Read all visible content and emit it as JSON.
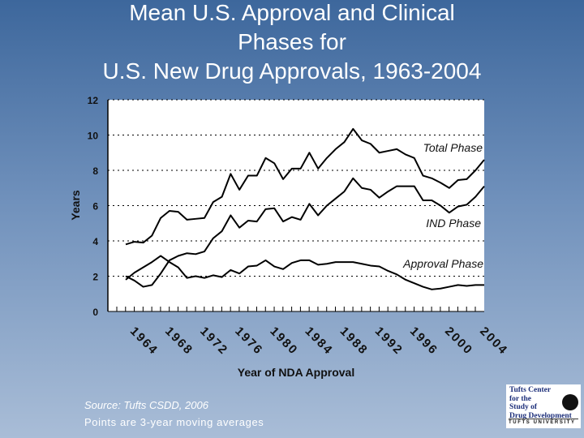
{
  "title_lines": [
    "Mean U.S. Approval and Clinical",
    "Phases for",
    "U.S. New Drug Approvals, 1963-2004"
  ],
  "chart_data": {
    "type": "line",
    "title": "Mean U.S. Approval and Clinical Phases for U.S. New Drug Approvals, 1963-2004",
    "xlabel": "Year of NDA Approval",
    "ylabel": "Years",
    "ylim": [
      0,
      12
    ],
    "yticks": [
      "0",
      "2",
      "4",
      "6",
      "8",
      "10",
      "12"
    ],
    "xlim": [
      1963,
      2004
    ],
    "xticks": [
      "1964",
      "1968",
      "1972",
      "1976",
      "1980",
      "1984",
      "1988",
      "1992",
      "1996",
      "2000",
      "2004"
    ],
    "grid": "horizontal dashed",
    "x": [
      1963,
      1964,
      1965,
      1966,
      1967,
      1968,
      1969,
      1970,
      1971,
      1972,
      1973,
      1974,
      1975,
      1976,
      1977,
      1978,
      1979,
      1980,
      1981,
      1982,
      1983,
      1984,
      1985,
      1986,
      1987,
      1988,
      1989,
      1990,
      1991,
      1992,
      1993,
      1994,
      1995,
      1996,
      1997,
      1998,
      1999,
      2000,
      2001,
      2002,
      2003,
      2004
    ],
    "series": [
      {
        "name": "Total Phase",
        "values": [
          3.8,
          3.95,
          3.9,
          4.3,
          5.3,
          5.7,
          5.65,
          5.2,
          5.25,
          5.3,
          6.2,
          6.5,
          7.8,
          6.9,
          7.7,
          7.7,
          8.7,
          8.4,
          7.5,
          8.1,
          8.1,
          9.0,
          8.1,
          8.7,
          9.2,
          9.6,
          10.35,
          9.7,
          9.5,
          9.0,
          9.1,
          9.2,
          8.9,
          8.7,
          7.7,
          7.55,
          7.3,
          7.0,
          7.45,
          7.5,
          8.0,
          8.6
        ]
      },
      {
        "name": "IND Phase",
        "values": [
          2.0,
          1.75,
          1.4,
          1.5,
          2.15,
          2.9,
          3.15,
          3.3,
          3.25,
          3.4,
          4.15,
          4.55,
          5.45,
          4.75,
          5.15,
          5.1,
          5.8,
          5.85,
          5.1,
          5.35,
          5.2,
          6.1,
          5.45,
          6.0,
          6.4,
          6.8,
          7.55,
          7.0,
          6.9,
          6.45,
          6.8,
          7.1,
          7.1,
          7.1,
          6.3,
          6.3,
          6.0,
          5.6,
          5.95,
          6.05,
          6.5,
          7.1
        ]
      },
      {
        "name": "Approval Phase",
        "values": [
          1.8,
          2.2,
          2.5,
          2.8,
          3.15,
          2.8,
          2.5,
          1.9,
          2.0,
          1.9,
          2.05,
          1.95,
          2.35,
          2.15,
          2.55,
          2.6,
          2.9,
          2.55,
          2.4,
          2.75,
          2.9,
          2.9,
          2.65,
          2.7,
          2.8,
          2.8,
          2.8,
          2.7,
          2.6,
          2.55,
          2.3,
          2.1,
          1.8,
          1.6,
          1.4,
          1.25,
          1.3,
          1.4,
          1.5,
          1.45,
          1.5,
          1.5
        ]
      }
    ]
  },
  "source": {
    "line1": "Source: Tufts CSDD, 2006",
    "line2": "Points are 3-year moving averages"
  },
  "logo": {
    "text": "Tufts Center for the Study of Drug Development",
    "university": "TUFTS UNIVERSITY"
  }
}
